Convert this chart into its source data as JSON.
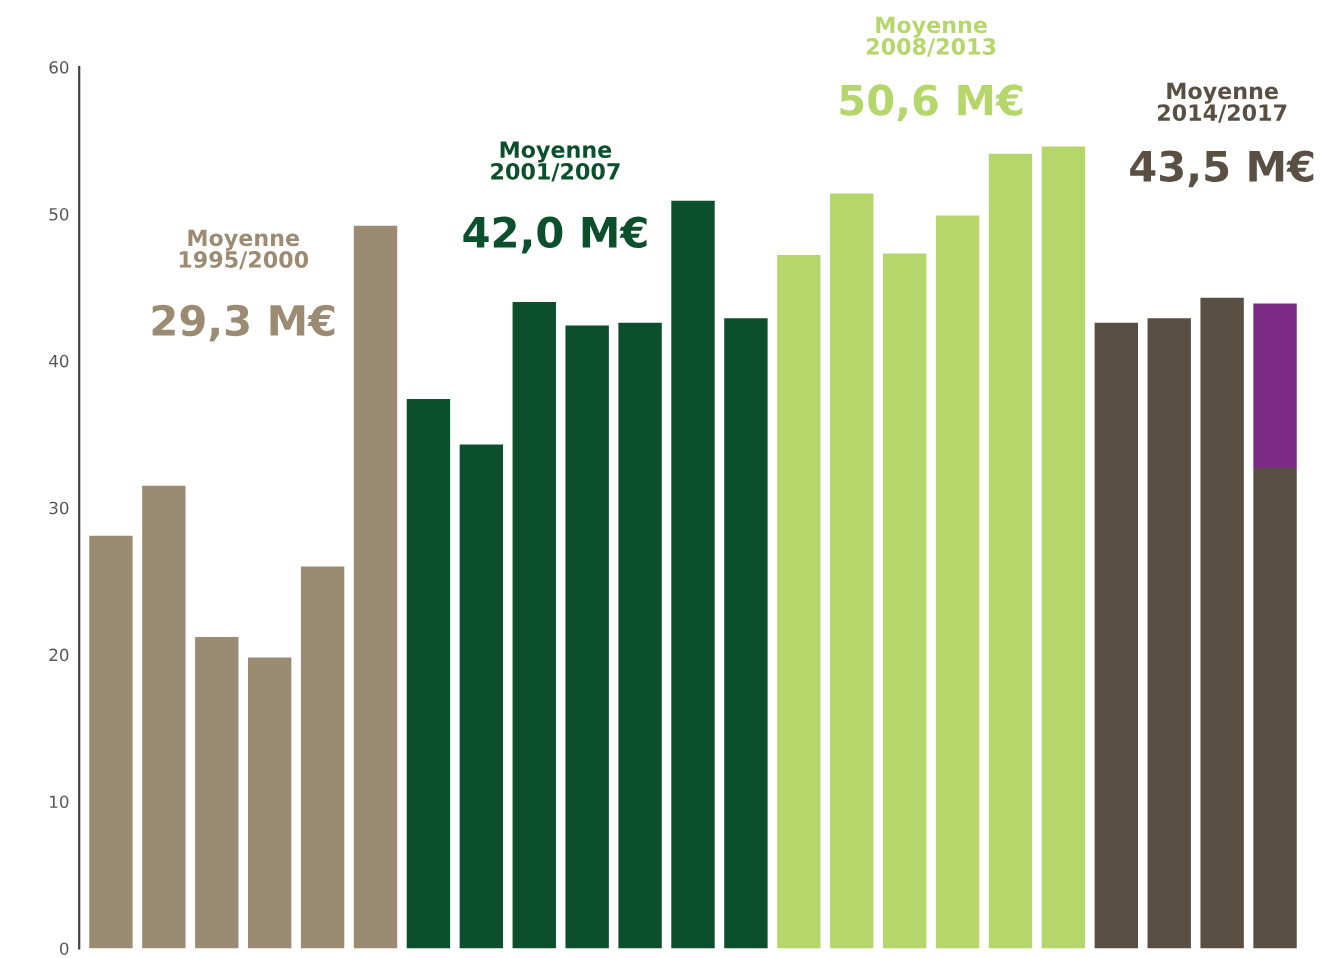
{
  "chart_data": {
    "type": "bar",
    "stacked": true,
    "categories": [
      null,
      null,
      null,
      null,
      null,
      null,
      null,
      null,
      null,
      null,
      null,
      null,
      null,
      null,
      null,
      null,
      null,
      null,
      null,
      null,
      null,
      null,
      null
    ],
    "series": [
      {
        "colors": [
          "#9b8b73",
          "#9b8b73",
          "#9b8b73",
          "#9b8b73",
          "#9b8b73",
          "#9b8b73",
          "#0b4f2c",
          "#0b4f2c",
          "#0b4f2c",
          "#0b4f2c",
          "#0b4f2c",
          "#0b4f2c",
          "#0b4f2c",
          "#b5d66a",
          "#b5d66a",
          "#b5d66a",
          "#b5d66a",
          "#b5d66a",
          "#b5d66a",
          "#5a4f43",
          "#5a4f43",
          "#5a4f43",
          "#5a4f43"
        ],
        "values": [
          28.1,
          31.5,
          21.2,
          19.8,
          26.0,
          49.2,
          37.4,
          34.3,
          44.0,
          42.4,
          42.6,
          50.9,
          42.9,
          47.2,
          51.4,
          47.3,
          49.9,
          54.1,
          54.6,
          42.6,
          42.9,
          44.3,
          32.7
        ]
      },
      {
        "color": "#7b2a86",
        "values": [
          null,
          null,
          null,
          null,
          null,
          null,
          null,
          null,
          null,
          null,
          null,
          null,
          null,
          null,
          null,
          null,
          null,
          null,
          null,
          null,
          null,
          null,
          11.2
        ]
      }
    ],
    "ylim": [
      0,
      60
    ],
    "yticks": [
      0,
      10,
      20,
      30,
      40,
      50,
      60
    ],
    "grid": false,
    "tick_labels": "y",
    "annotations": [
      "Moyenne\n1995/2000",
      "29,3 M€",
      "Moyenne\n2001/2007",
      "42,0 M€",
      "Moyenne\n2008/2013",
      "50,6 M€",
      "Moyenne\n2014/2017",
      "43,5 M€"
    ]
  }
}
